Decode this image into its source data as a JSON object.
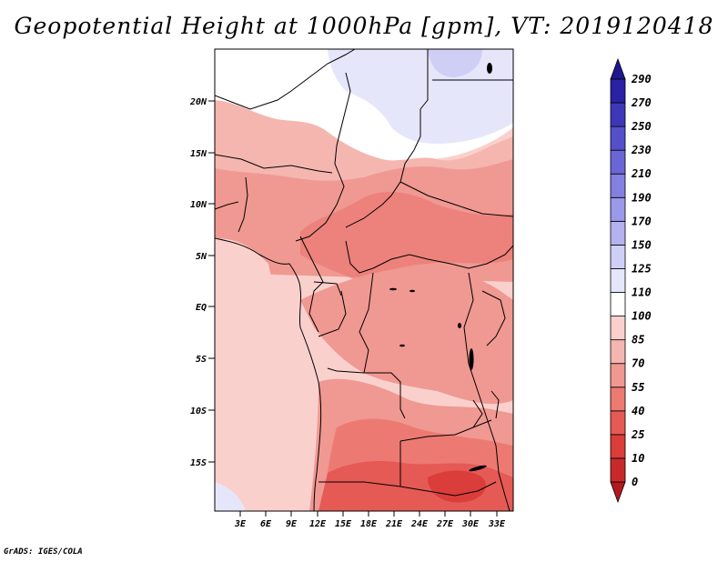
{
  "title": "Geopotential Height at 1000hPa [gpm], VT: 2019120418",
  "credit": "GrADS: IGES/COLA",
  "lat_labels": [
    "20N",
    "15N",
    "10N",
    "5N",
    "EQ",
    "5S",
    "10S",
    "15S"
  ],
  "lon_labels": [
    "3E",
    "6E",
    "9E",
    "12E",
    "15E",
    "18E",
    "21E",
    "24E",
    "27E",
    "30E",
    "33E"
  ],
  "colorbar": {
    "levels": [
      "0",
      "10",
      "25",
      "40",
      "55",
      "70",
      "85",
      "100",
      "110",
      "125",
      "150",
      "170",
      "190",
      "210",
      "230",
      "250",
      "270",
      "290"
    ],
    "colors": [
      "#b4191d",
      "#c82a2b",
      "#da3d3a",
      "#e55a55",
      "#ec7a73",
      "#f09892",
      "#f5b6b0",
      "#fad0cc",
      "#ffffff",
      "#e6e6fb",
      "#cfcff6",
      "#b4b3f0",
      "#9b99e9",
      "#8280e0",
      "#6a66d6",
      "#5350c9",
      "#3d38b8",
      "#2a22a3",
      "#1f1790"
    ],
    "unit": "gpm"
  }
}
